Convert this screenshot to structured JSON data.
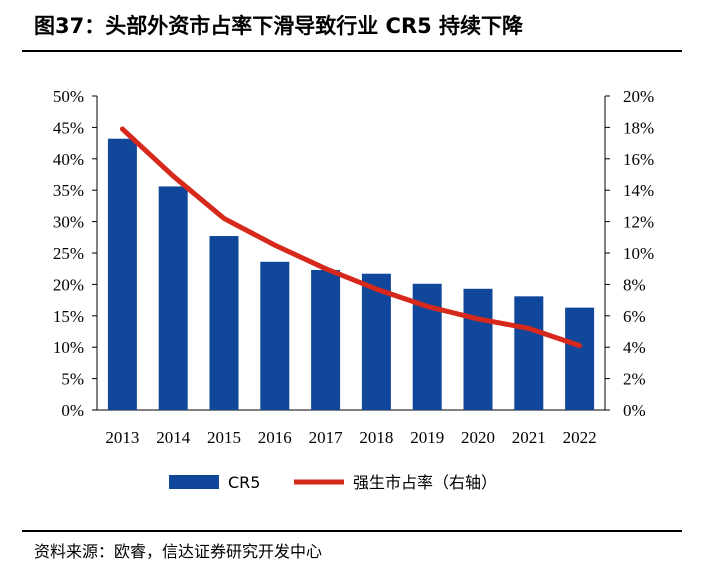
{
  "title": "图37：头部外资市占率下滑导致行业 CR5 持续下降",
  "source": "资料来源：欧睿，信达证券研究开发中心",
  "colors": {
    "bar": "#10479a",
    "line": "#d7281c"
  },
  "chart_data": {
    "type": "bar+line",
    "categories": [
      "2013",
      "2014",
      "2015",
      "2016",
      "2017",
      "2018",
      "2019",
      "2020",
      "2021",
      "2022"
    ],
    "series": [
      {
        "name": "CR5",
        "type": "bar",
        "axis": "left",
        "values": [
          43.2,
          35.6,
          27.7,
          23.6,
          22.3,
          21.7,
          20.1,
          19.3,
          18.1,
          16.3
        ]
      },
      {
        "name": "强生市占率（右轴）",
        "type": "line",
        "axis": "right",
        "values": [
          17.9,
          14.9,
          12.2,
          10.5,
          9.0,
          7.7,
          6.6,
          5.8,
          5.2,
          4.1
        ]
      }
    ],
    "left_axis": {
      "min": 0,
      "max": 50,
      "step": 5,
      "ticks": [
        "0%",
        "5%",
        "10%",
        "15%",
        "20%",
        "25%",
        "30%",
        "35%",
        "40%",
        "45%",
        "50%"
      ]
    },
    "right_axis": {
      "min": 0,
      "max": 20,
      "step": 2,
      "ticks": [
        "0%",
        "2%",
        "4%",
        "6%",
        "8%",
        "10%",
        "12%",
        "14%",
        "16%",
        "18%",
        "20%"
      ]
    },
    "grid": false,
    "legend_position": "bottom"
  }
}
